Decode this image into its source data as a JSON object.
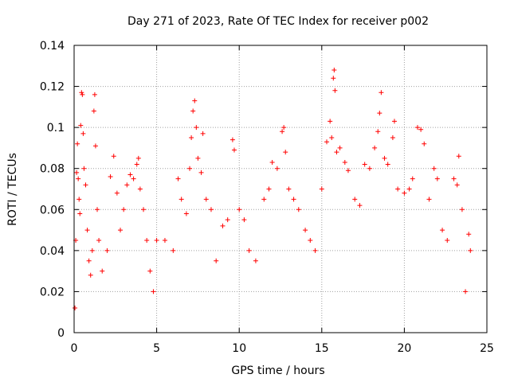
{
  "chart_data": {
    "type": "scatter",
    "title": "Day 271 of 2023, Rate Of TEC Index for receiver p002",
    "xlabel": "GPS time / hours",
    "ylabel": "ROTI / TECUs",
    "xlim": [
      0,
      25
    ],
    "ylim": [
      0,
      0.14
    ],
    "xticks": [
      "0",
      "5",
      "10",
      "15",
      "20",
      "25"
    ],
    "yticks": [
      "0",
      "0.02",
      "0.04",
      "0.06",
      "0.08",
      "0.1",
      "0.12",
      "0.14"
    ],
    "grid": true,
    "marker": "+",
    "color": "#ff0000",
    "series": [
      {
        "points": [
          [
            0.05,
            0.012
          ],
          [
            0.1,
            0.045
          ],
          [
            0.15,
            0.078
          ],
          [
            0.2,
            0.092
          ],
          [
            0.25,
            0.075
          ],
          [
            0.3,
            0.065
          ],
          [
            0.35,
            0.058
          ],
          [
            0.4,
            0.101
          ],
          [
            0.45,
            0.117
          ],
          [
            0.5,
            0.116
          ],
          [
            0.55,
            0.097
          ],
          [
            0.6,
            0.08
          ],
          [
            0.7,
            0.072
          ],
          [
            0.8,
            0.05
          ],
          [
            0.9,
            0.035
          ],
          [
            1.0,
            0.028
          ],
          [
            1.1,
            0.04
          ],
          [
            1.2,
            0.108
          ],
          [
            1.25,
            0.116
          ],
          [
            1.3,
            0.091
          ],
          [
            1.4,
            0.06
          ],
          [
            1.5,
            0.045
          ],
          [
            1.7,
            0.03
          ],
          [
            2.0,
            0.04
          ],
          [
            2.2,
            0.076
          ],
          [
            2.4,
            0.086
          ],
          [
            2.6,
            0.068
          ],
          [
            2.8,
            0.05
          ],
          [
            3.0,
            0.06
          ],
          [
            3.2,
            0.072
          ],
          [
            3.4,
            0.077
          ],
          [
            3.6,
            0.075
          ],
          [
            3.8,
            0.082
          ],
          [
            3.9,
            0.085
          ],
          [
            4.0,
            0.07
          ],
          [
            4.2,
            0.06
          ],
          [
            4.4,
            0.045
          ],
          [
            4.6,
            0.03
          ],
          [
            4.8,
            0.02
          ],
          [
            5.0,
            0.045
          ],
          [
            5.5,
            0.045
          ],
          [
            6.0,
            0.04
          ],
          [
            6.3,
            0.075
          ],
          [
            6.5,
            0.065
          ],
          [
            6.8,
            0.058
          ],
          [
            7.0,
            0.08
          ],
          [
            7.1,
            0.095
          ],
          [
            7.2,
            0.108
          ],
          [
            7.3,
            0.113
          ],
          [
            7.4,
            0.1
          ],
          [
            7.5,
            0.085
          ],
          [
            7.7,
            0.078
          ],
          [
            7.8,
            0.097
          ],
          [
            8.0,
            0.065
          ],
          [
            8.3,
            0.06
          ],
          [
            8.6,
            0.035
          ],
          [
            9.0,
            0.052
          ],
          [
            9.3,
            0.055
          ],
          [
            9.6,
            0.094
          ],
          [
            9.7,
            0.089
          ],
          [
            10.0,
            0.06
          ],
          [
            10.3,
            0.055
          ],
          [
            10.6,
            0.04
          ],
          [
            11.0,
            0.035
          ],
          [
            11.5,
            0.065
          ],
          [
            11.8,
            0.07
          ],
          [
            12.0,
            0.083
          ],
          [
            12.3,
            0.08
          ],
          [
            12.6,
            0.098
          ],
          [
            12.7,
            0.1
          ],
          [
            12.8,
            0.088
          ],
          [
            13.0,
            0.07
          ],
          [
            13.3,
            0.065
          ],
          [
            13.6,
            0.06
          ],
          [
            14.0,
            0.05
          ],
          [
            14.3,
            0.045
          ],
          [
            14.6,
            0.04
          ],
          [
            15.0,
            0.07
          ],
          [
            15.3,
            0.093
          ],
          [
            15.5,
            0.103
          ],
          [
            15.6,
            0.095
          ],
          [
            15.7,
            0.124
          ],
          [
            15.75,
            0.128
          ],
          [
            15.8,
            0.118
          ],
          [
            15.9,
            0.088
          ],
          [
            16.1,
            0.09
          ],
          [
            16.4,
            0.083
          ],
          [
            16.6,
            0.079
          ],
          [
            17.0,
            0.065
          ],
          [
            17.3,
            0.062
          ],
          [
            17.6,
            0.082
          ],
          [
            17.9,
            0.08
          ],
          [
            18.2,
            0.09
          ],
          [
            18.4,
            0.098
          ],
          [
            18.5,
            0.107
          ],
          [
            18.6,
            0.117
          ],
          [
            18.8,
            0.085
          ],
          [
            19.0,
            0.082
          ],
          [
            19.3,
            0.095
          ],
          [
            19.4,
            0.103
          ],
          [
            19.6,
            0.07
          ],
          [
            20.0,
            0.068
          ],
          [
            20.3,
            0.07
          ],
          [
            20.5,
            0.075
          ],
          [
            20.8,
            0.1
          ],
          [
            21.0,
            0.099
          ],
          [
            21.2,
            0.092
          ],
          [
            21.5,
            0.065
          ],
          [
            21.8,
            0.08
          ],
          [
            22.0,
            0.075
          ],
          [
            22.3,
            0.05
          ],
          [
            22.6,
            0.045
          ],
          [
            23.0,
            0.075
          ],
          [
            23.2,
            0.072
          ],
          [
            23.3,
            0.086
          ],
          [
            23.5,
            0.06
          ],
          [
            23.7,
            0.02
          ],
          [
            23.9,
            0.048
          ],
          [
            24.0,
            0.04
          ]
        ]
      }
    ]
  }
}
